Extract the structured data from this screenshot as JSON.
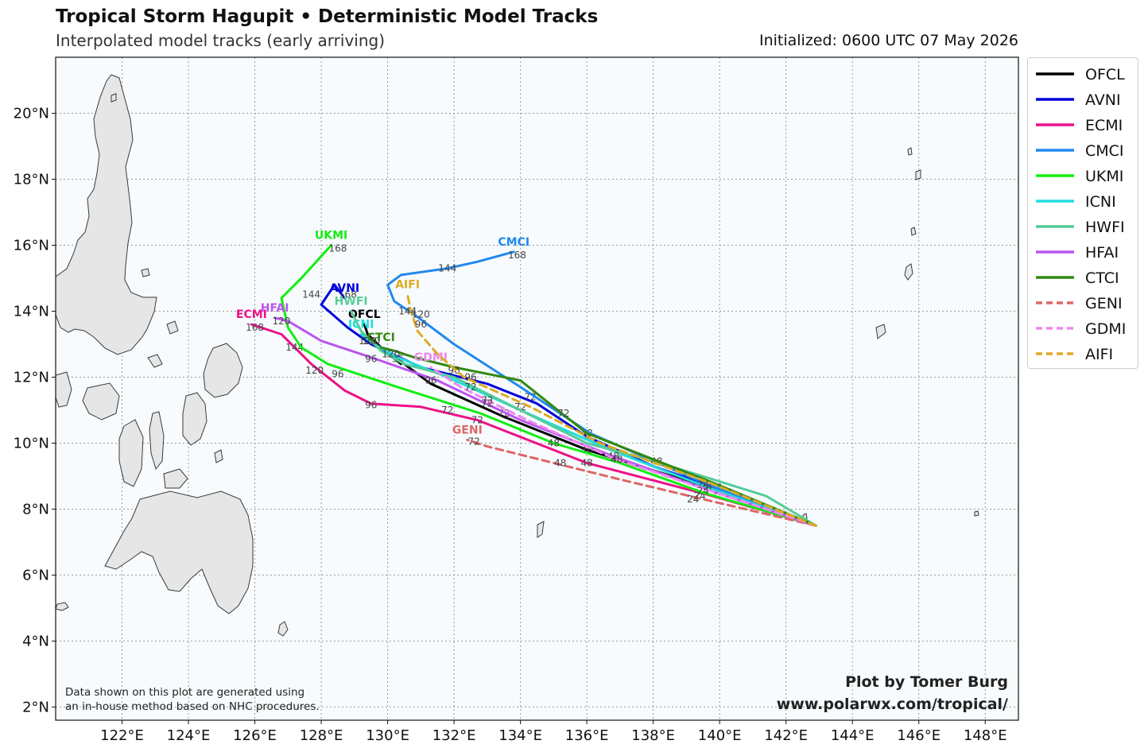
{
  "header": {
    "title": "Tropical Storm Hagupit • Deterministic Model Tracks",
    "subtitle": "Interpolated model tracks (early arriving)",
    "initialized": "Initialized: 0600 UTC 07 May 2026"
  },
  "map": {
    "extent": {
      "lon_min": 120.0,
      "lon_max": 149.0,
      "lat_min": 1.6,
      "lat_max": 21.7
    },
    "lon_ticks": [
      {
        "value": 122,
        "label": "122°E"
      },
      {
        "value": 124,
        "label": "124°E"
      },
      {
        "value": 126,
        "label": "126°E"
      },
      {
        "value": 128,
        "label": "128°E"
      },
      {
        "value": 130,
        "label": "130°E"
      },
      {
        "value": 132,
        "label": "132°E"
      },
      {
        "value": 134,
        "label": "134°E"
      },
      {
        "value": 136,
        "label": "136°E"
      },
      {
        "value": 138,
        "label": "138°E"
      },
      {
        "value": 140,
        "label": "140°E"
      },
      {
        "value": 142,
        "label": "142°E"
      },
      {
        "value": 144,
        "label": "144°E"
      },
      {
        "value": 146,
        "label": "146°E"
      },
      {
        "value": 148,
        "label": "148°E"
      }
    ],
    "lat_ticks": [
      {
        "value": 2,
        "label": "2°N"
      },
      {
        "value": 4,
        "label": "4°N"
      },
      {
        "value": 6,
        "label": "6°N"
      },
      {
        "value": 8,
        "label": "8°N"
      },
      {
        "value": 10,
        "label": "10°N"
      },
      {
        "value": 12,
        "label": "12°N"
      },
      {
        "value": 14,
        "label": "14°N"
      },
      {
        "value": 16,
        "label": "16°N"
      },
      {
        "value": 18,
        "label": "18°N"
      },
      {
        "value": 20,
        "label": "20°N"
      }
    ],
    "grid": true,
    "ocean_color": "#f7fbfd",
    "land_color": "#e6e6e6"
  },
  "chart_data": {
    "type": "map-tracks",
    "origin": {
      "lon": 142.9,
      "lat": 7.5
    },
    "series": [
      {
        "name": "OFCL",
        "color": "#000000",
        "dash": false,
        "end_label": "OFCL",
        "points": [
          [
            142.9,
            7.5
          ],
          [
            140.0,
            8.55
          ],
          [
            136.0,
            9.8
          ],
          [
            133.5,
            10.8
          ],
          [
            131.3,
            11.8
          ],
          [
            130.5,
            12.4
          ],
          [
            130.2,
            12.6
          ],
          [
            130.4,
            12.4
          ],
          [
            129.8,
            12.9
          ],
          [
            129.4,
            13.3
          ],
          [
            129.3,
            13.6
          ]
        ],
        "tau_labels": [
          {
            "lon": 140.0,
            "lat": 8.55,
            "text": "24"
          },
          {
            "lon": 136.0,
            "lat": 9.8,
            "text": "48"
          },
          {
            "lon": 133.5,
            "lat": 10.9,
            "text": "72"
          },
          {
            "lon": 130.3,
            "lat": 12.55,
            "text": "96"
          }
        ]
      },
      {
        "name": "AVNI",
        "color": "#0000dd",
        "dash": false,
        "end_label": "AVNI",
        "points": [
          [
            142.9,
            7.5
          ],
          [
            140.0,
            8.6
          ],
          [
            138.0,
            9.3
          ],
          [
            136.0,
            10.2
          ],
          [
            134.5,
            11.2
          ],
          [
            133.0,
            11.8
          ],
          [
            131.0,
            12.3
          ],
          [
            129.5,
            13.0
          ],
          [
            128.8,
            13.5
          ],
          [
            128.0,
            14.2
          ],
          [
            128.4,
            14.8
          ],
          [
            128.7,
            14.4
          ]
        ],
        "tau_labels": [
          {
            "lon": 139.9,
            "lat": 8.65,
            "text": "24"
          },
          {
            "lon": 136.0,
            "lat": 10.3,
            "text": "48"
          },
          {
            "lon": 134.3,
            "lat": 11.4,
            "text": "72"
          },
          {
            "lon": 132.5,
            "lat": 12.0,
            "text": "96"
          },
          {
            "lon": 128.8,
            "lat": 14.5,
            "text": "168"
          }
        ]
      },
      {
        "name": "ECMI",
        "color": "#ee1188",
        "dash": false,
        "end_label": "ECMI",
        "points": [
          [
            142.9,
            7.5
          ],
          [
            139.6,
            8.45
          ],
          [
            136.0,
            9.4
          ],
          [
            132.7,
            10.7
          ],
          [
            131.0,
            11.1
          ],
          [
            129.5,
            11.2
          ],
          [
            128.7,
            11.6
          ],
          [
            127.7,
            12.4
          ],
          [
            127.2,
            12.9
          ],
          [
            126.8,
            13.3
          ],
          [
            125.9,
            13.6
          ]
        ],
        "tau_labels": [
          {
            "lon": 139.4,
            "lat": 8.4,
            "text": "24"
          },
          {
            "lon": 136.0,
            "lat": 9.4,
            "text": "48"
          },
          {
            "lon": 132.7,
            "lat": 10.7,
            "text": "72"
          },
          {
            "lon": 129.5,
            "lat": 11.15,
            "text": "96"
          },
          {
            "lon": 127.8,
            "lat": 12.2,
            "text": "120"
          },
          {
            "lon": 127.2,
            "lat": 12.9,
            "text": "144"
          },
          {
            "lon": 126.0,
            "lat": 13.5,
            "text": "168"
          }
        ]
      },
      {
        "name": "CMCI",
        "color": "#2288ee",
        "dash": false,
        "end_label": "CMCI",
        "points": [
          [
            142.9,
            7.5
          ],
          [
            139.5,
            8.8
          ],
          [
            136.1,
            10.3
          ],
          [
            134.0,
            11.7
          ],
          [
            132.0,
            13.0
          ],
          [
            130.8,
            13.9
          ],
          [
            130.2,
            14.3
          ],
          [
            130.0,
            14.8
          ],
          [
            130.4,
            15.1
          ],
          [
            131.8,
            15.3
          ],
          [
            132.7,
            15.5
          ],
          [
            133.8,
            15.8
          ]
        ],
        "tau_labels": [
          {
            "lon": 131.0,
            "lat": 13.9,
            "text": "120"
          },
          {
            "lon": 131.8,
            "lat": 15.3,
            "text": "144"
          },
          {
            "lon": 133.9,
            "lat": 15.7,
            "text": "168"
          }
        ]
      },
      {
        "name": "UKMI",
        "color": "#11ee11",
        "dash": false,
        "end_label": "UKMI",
        "points": [
          [
            142.9,
            7.5
          ],
          [
            139.5,
            8.5
          ],
          [
            137.0,
            9.4
          ],
          [
            135.0,
            10.0
          ],
          [
            132.8,
            10.9
          ],
          [
            130.3,
            11.7
          ],
          [
            128.2,
            12.4
          ],
          [
            127.4,
            12.9
          ],
          [
            127.0,
            13.5
          ],
          [
            126.8,
            14.4
          ],
          [
            127.4,
            15.0
          ],
          [
            128.3,
            16.0
          ]
        ],
        "tau_labels": [
          {
            "lon": 135.0,
            "lat": 10.0,
            "text": "48"
          },
          {
            "lon": 131.8,
            "lat": 11.0,
            "text": "72"
          },
          {
            "lon": 128.5,
            "lat": 12.1,
            "text": "96"
          },
          {
            "lon": 127.7,
            "lat": 14.5,
            "text": "144"
          },
          {
            "lon": 128.5,
            "lat": 15.9,
            "text": "168"
          }
        ]
      },
      {
        "name": "ICNI",
        "color": "#22dddd",
        "dash": false,
        "end_label": "ICNI",
        "points": [
          [
            142.9,
            7.5
          ],
          [
            139.8,
            8.6
          ],
          [
            136.7,
            9.8
          ],
          [
            134.0,
            11.0
          ],
          [
            131.8,
            12.0
          ],
          [
            130.3,
            12.6
          ],
          [
            129.6,
            13.0
          ],
          [
            129.2,
            13.3
          ]
        ],
        "tau_labels": [
          {
            "lon": 139.5,
            "lat": 8.75,
            "text": "24"
          },
          {
            "lon": 134.0,
            "lat": 11.1,
            "text": "72"
          },
          {
            "lon": 129.5,
            "lat": 13.1,
            "text": "120"
          }
        ]
      },
      {
        "name": "HWFI",
        "color": "#55cc99",
        "dash": false,
        "end_label": "HWFI",
        "points": [
          [
            142.9,
            7.5
          ],
          [
            141.4,
            8.4
          ],
          [
            138.2,
            9.4
          ],
          [
            136.0,
            10.0
          ],
          [
            134.0,
            11.0
          ],
          [
            132.0,
            12.0
          ],
          [
            130.5,
            12.4
          ],
          [
            129.8,
            12.8
          ],
          [
            129.2,
            13.4
          ],
          [
            128.9,
            14.0
          ]
        ],
        "tau_labels": [
          {
            "lon": 138.1,
            "lat": 9.45,
            "text": "48"
          },
          {
            "lon": 129.4,
            "lat": 13.1,
            "text": "120"
          }
        ]
      },
      {
        "name": "HFAI",
        "color": "#bb55ee",
        "dash": false,
        "end_label": "HFAI",
        "points": [
          [
            142.9,
            7.5
          ],
          [
            139.6,
            8.6
          ],
          [
            136.8,
            9.6
          ],
          [
            134.0,
            10.7
          ],
          [
            131.5,
            11.9
          ],
          [
            129.5,
            12.6
          ],
          [
            128.0,
            13.1
          ],
          [
            127.0,
            13.7
          ],
          [
            126.6,
            13.8
          ]
        ],
        "tau_labels": [
          {
            "lon": 136.8,
            "lat": 9.6,
            "text": "48"
          },
          {
            "lon": 133.0,
            "lat": 11.3,
            "text": "72"
          },
          {
            "lon": 129.5,
            "lat": 12.55,
            "text": "96"
          },
          {
            "lon": 126.8,
            "lat": 13.7,
            "text": "120"
          }
        ]
      },
      {
        "name": "CTCI",
        "color": "#338811",
        "dash": false,
        "end_label": "CTCI",
        "points": [
          [
            142.9,
            7.5
          ],
          [
            139.8,
            8.8
          ],
          [
            136.0,
            10.3
          ],
          [
            134.0,
            11.9
          ],
          [
            132.0,
            12.3
          ],
          [
            130.8,
            12.6
          ],
          [
            130.2,
            12.8
          ],
          [
            129.8,
            12.9
          ]
        ],
        "tau_labels": [
          {
            "lon": 139.6,
            "lat": 8.7,
            "text": "24"
          },
          {
            "lon": 135.3,
            "lat": 10.9,
            "text": "72"
          },
          {
            "lon": 132.0,
            "lat": 12.2,
            "text": "96"
          },
          {
            "lon": 130.1,
            "lat": 12.7,
            "text": "120"
          }
        ]
      },
      {
        "name": "GENI",
        "color": "#dd6666",
        "dash": true,
        "end_label": "GENI",
        "points": [
          [
            142.9,
            7.5
          ],
          [
            139.5,
            8.3
          ],
          [
            137.0,
            8.9
          ],
          [
            135.0,
            9.4
          ],
          [
            133.0,
            9.9
          ],
          [
            132.4,
            10.1
          ]
        ],
        "tau_labels": [
          {
            "lon": 139.2,
            "lat": 8.3,
            "text": "24"
          },
          {
            "lon": 135.2,
            "lat": 9.4,
            "text": "48"
          },
          {
            "lon": 132.6,
            "lat": 10.05,
            "text": "72"
          }
        ]
      },
      {
        "name": "GDMI",
        "color": "#ee88ee",
        "dash": true,
        "end_label": "GDMI",
        "points": [
          [
            142.9,
            7.5
          ],
          [
            139.6,
            8.6
          ],
          [
            136.9,
            9.5
          ],
          [
            134.2,
            10.7
          ],
          [
            132.2,
            11.7
          ],
          [
            131.3,
            12.3
          ]
        ],
        "tau_labels": [
          {
            "lon": 139.5,
            "lat": 8.55,
            "text": "24"
          },
          {
            "lon": 136.9,
            "lat": 9.5,
            "text": "48"
          },
          {
            "lon": 133.0,
            "lat": 11.2,
            "text": "72"
          },
          {
            "lon": 131.3,
            "lat": 11.9,
            "text": "96"
          }
        ]
      },
      {
        "name": "AIFI",
        "color": "#ddaa22",
        "dash": true,
        "end_label": "AIFI",
        "points": [
          [
            142.9,
            7.5
          ],
          [
            139.7,
            8.8
          ],
          [
            136.4,
            10.0
          ],
          [
            134.3,
            11.1
          ],
          [
            132.3,
            12.0
          ],
          [
            131.5,
            12.7
          ],
          [
            130.9,
            13.4
          ],
          [
            130.7,
            14.0
          ],
          [
            130.6,
            14.5
          ]
        ],
        "tau_labels": [
          {
            "lon": 132.5,
            "lat": 11.7,
            "text": "72"
          },
          {
            "lon": 131.0,
            "lat": 13.6,
            "text": "96"
          },
          {
            "lon": 130.6,
            "lat": 14.0,
            "text": "144"
          }
        ]
      }
    ]
  },
  "legend": {
    "items": [
      {
        "label": "OFCL",
        "color": "#000000",
        "dash": false
      },
      {
        "label": "AVNI",
        "color": "#0000dd",
        "dash": false
      },
      {
        "label": "ECMI",
        "color": "#ee1188",
        "dash": false
      },
      {
        "label": "CMCI",
        "color": "#2288ee",
        "dash": false
      },
      {
        "label": "UKMI",
        "color": "#11ee11",
        "dash": false
      },
      {
        "label": "ICNI",
        "color": "#22dddd",
        "dash": false
      },
      {
        "label": "HWFI",
        "color": "#55cc99",
        "dash": false
      },
      {
        "label": "HFAI",
        "color": "#bb55ee",
        "dash": false
      },
      {
        "label": "CTCI",
        "color": "#338811",
        "dash": false
      },
      {
        "label": "GENI",
        "color": "#dd6666",
        "dash": true
      },
      {
        "label": "GDMI",
        "color": "#ee88ee",
        "dash": true
      },
      {
        "label": "AIFI",
        "color": "#ddaa22",
        "dash": true
      }
    ]
  },
  "footer": {
    "disclaimer_line1": "Data shown on this plot are generated using",
    "disclaimer_line2": "an in-house method based on NHC procedures.",
    "credit": "Plot by Tomer Burg",
    "url": "www.polarwx.com/tropical/"
  }
}
